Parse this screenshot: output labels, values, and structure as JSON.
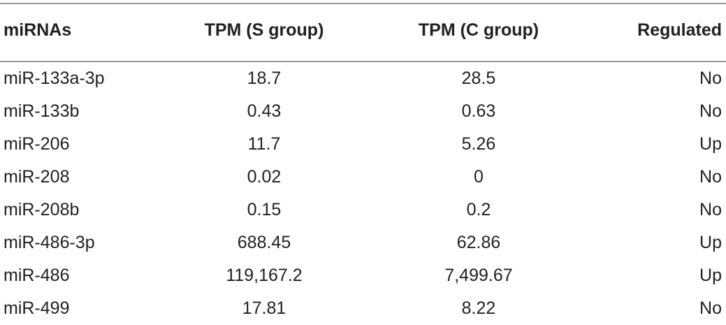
{
  "table": {
    "headers": [
      "miRNAs",
      "TPM (S group)",
      "TPM (C group)",
      "Regulated"
    ],
    "rows": [
      [
        "miR-133a-3p",
        "18.7",
        "28.5",
        "No"
      ],
      [
        "miR-133b",
        "0.43",
        "0.63",
        "No"
      ],
      [
        "miR-206",
        "11.7",
        "5.26",
        "Up"
      ],
      [
        "miR-208",
        "0.02",
        "0",
        "No"
      ],
      [
        "miR-208b",
        "0.15",
        "0.2",
        "No"
      ],
      [
        "miR-486-3p",
        "688.45",
        "62.86",
        "Up"
      ],
      [
        "miR-486",
        "119,167.2",
        "7,499.67",
        "Up"
      ],
      [
        "miR-499",
        "17.81",
        "8.22",
        "No"
      ]
    ]
  }
}
